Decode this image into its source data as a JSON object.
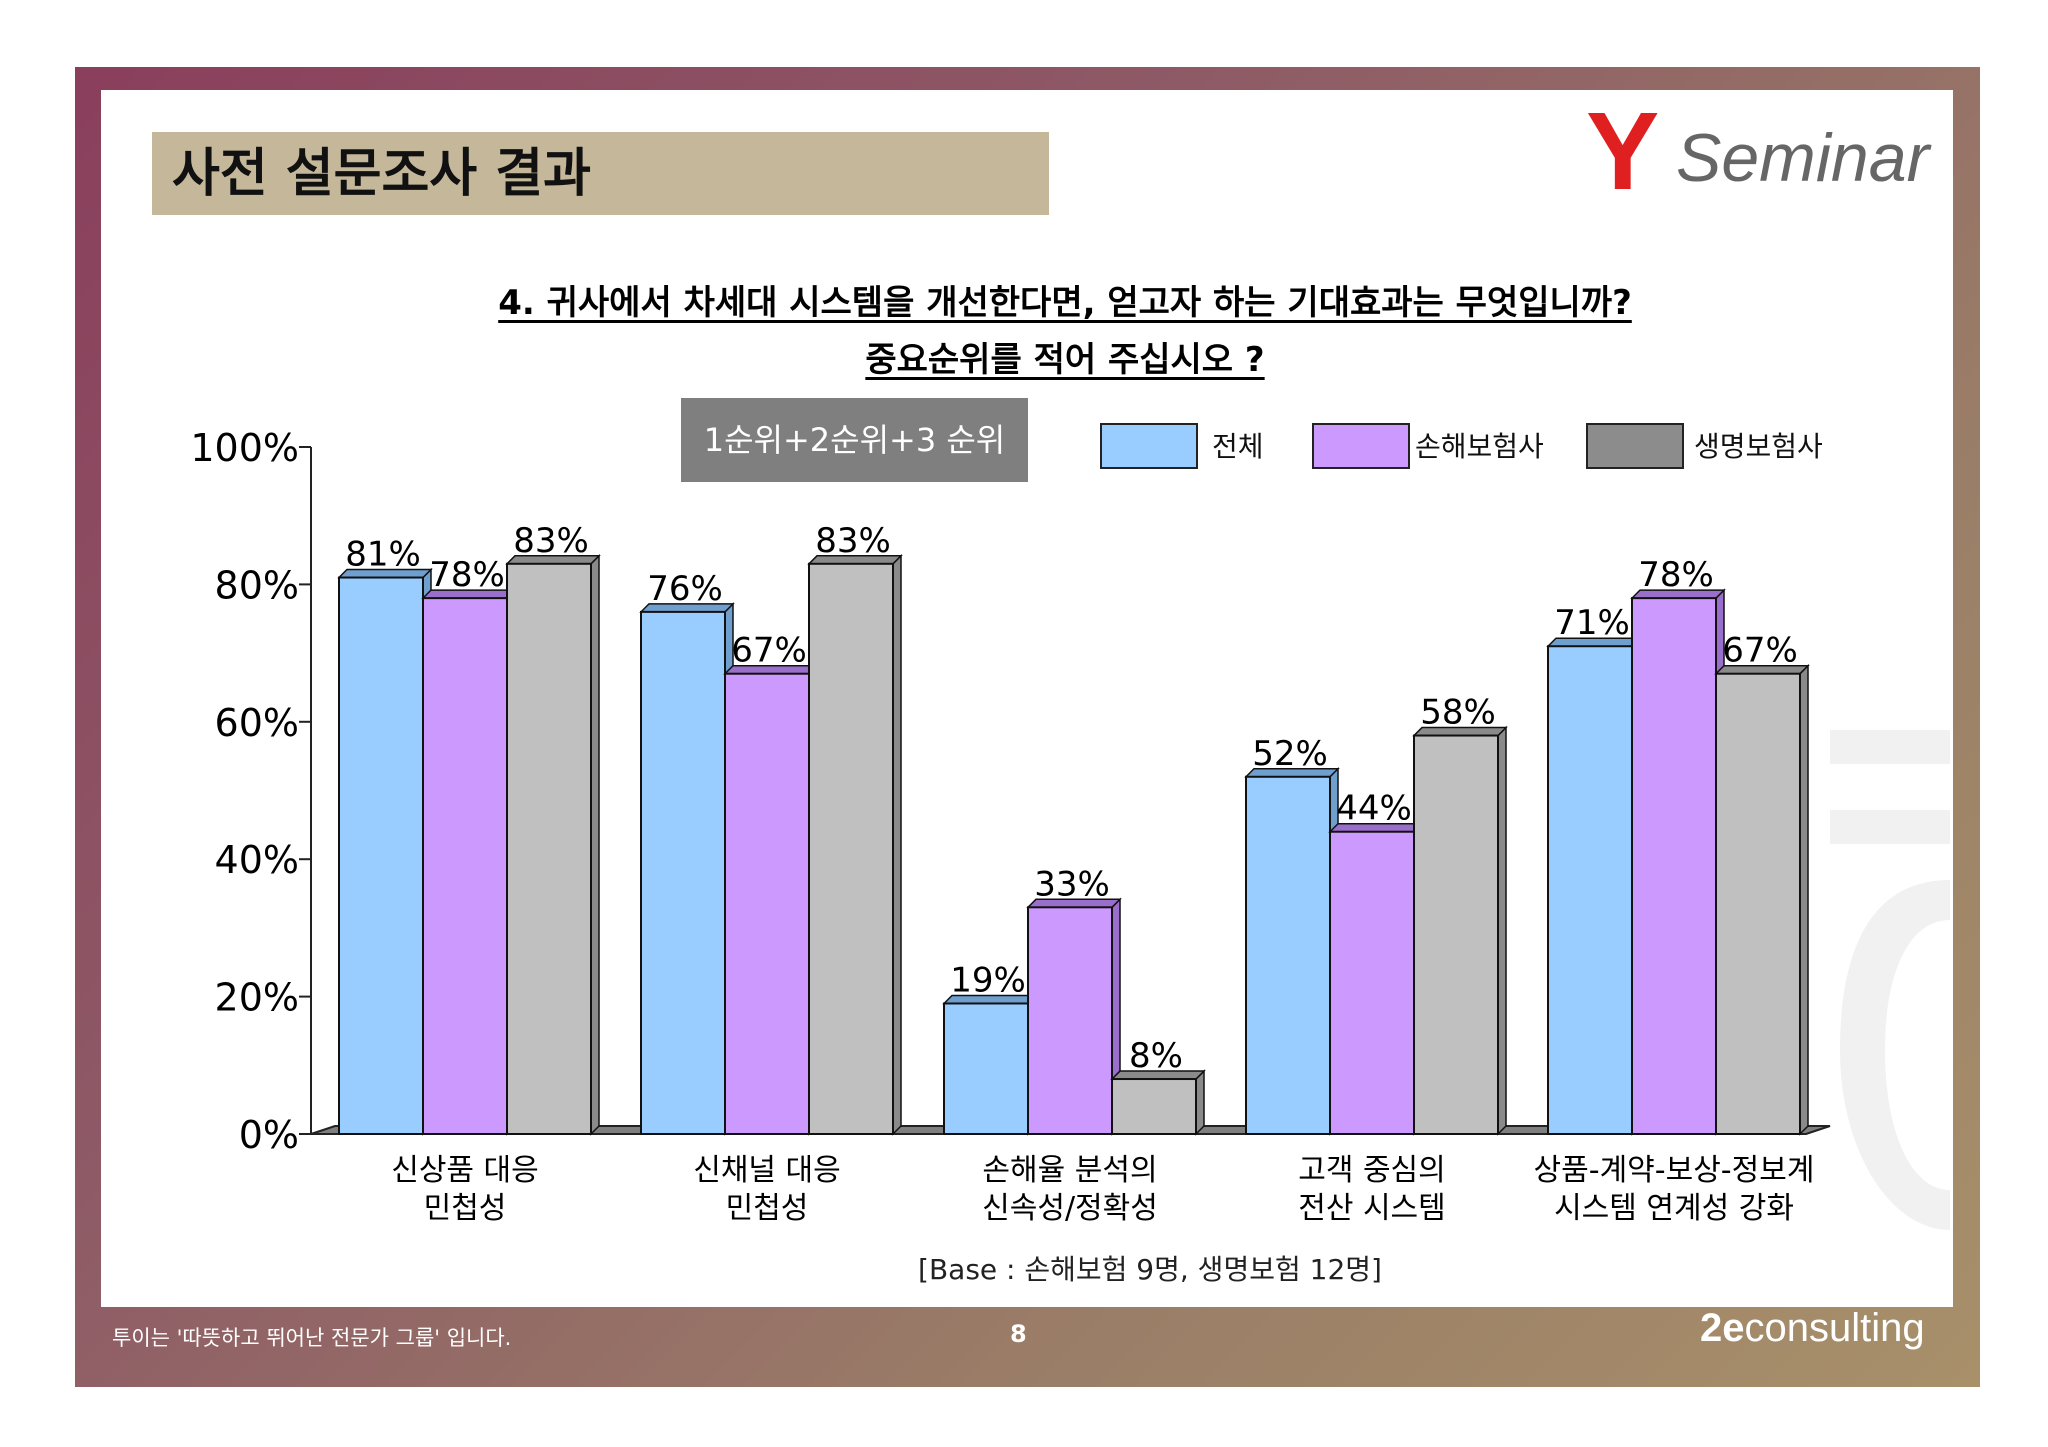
{
  "header": {
    "title": "사전 설문조사 결과",
    "logo_mark": "Y",
    "logo_text": "Seminar"
  },
  "question": {
    "line1": "4. 귀사에서 차세대 시스템을 개선한다면, 얻고자 하는 기대효과는 무엇입니까?",
    "line2": "중요순위를 적어 주십시오 ?"
  },
  "rank_label": "1순위+2순위+3 순위",
  "base_note": "[Base :  손해보험 9명, 생명보험  12명]",
  "footer": {
    "tagline": "투이는 '따뜻하고 뛰어난 전문가 그룹' 입니다.",
    "page": "8",
    "brand": "consulting"
  },
  "colors": {
    "frame": "#8e5a66",
    "title_bg": "#c5b89a",
    "logo_red": "#e02020",
    "series": [
      "#99ccff",
      "#cc99ff",
      "#c0c0c0"
    ]
  },
  "chart_data": {
    "type": "bar",
    "categories": [
      [
        "신상품 대응",
        "민첩성"
      ],
      [
        "신채널 대응",
        "민첩성"
      ],
      [
        "손해율 분석의",
        "신속성/정확성"
      ],
      [
        "고객 중심의",
        "전산 시스템"
      ],
      [
        "상품-계약-보상-정보계",
        "시스템 연계성 강화"
      ]
    ],
    "series": [
      {
        "name": "전체",
        "values": [
          81,
          76,
          19,
          52,
          71
        ],
        "labels": [
          "81%",
          "76%",
          "19%",
          "52%",
          "71%"
        ]
      },
      {
        "name": "손해보험사",
        "values": [
          78,
          67,
          33,
          44,
          78
        ],
        "labels": [
          "78%",
          "67%",
          "33%",
          "44%",
          "78%"
        ]
      },
      {
        "name": "생명보험사",
        "values": [
          83,
          83,
          8,
          58,
          67
        ],
        "labels": [
          "83%",
          "83%",
          "8%",
          "58%",
          "67%"
        ]
      }
    ],
    "ylim": [
      0,
      100
    ],
    "yticks": [
      "0%",
      "20%",
      "40%",
      "60%",
      "80%",
      "100%"
    ],
    "legend_position": "top-right",
    "grid": false
  }
}
